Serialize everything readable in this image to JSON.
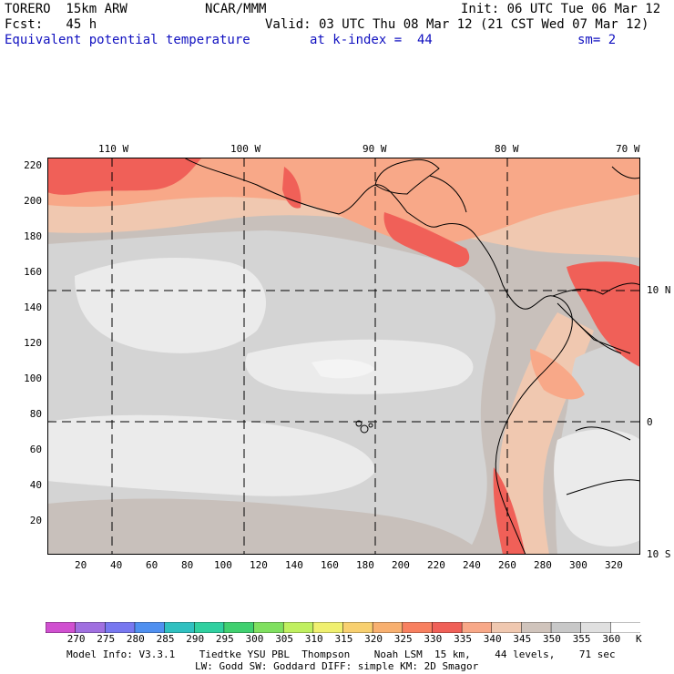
{
  "header": {
    "model": "TORERO  15km ARW",
    "center": "NCAR/MMM",
    "init": "Init: 06 UTC Tue 06 Mar 12",
    "fcst": "Fcst:   45 h",
    "valid": "Valid: 03 UTC Thu 08 Mar 12 (21 CST Wed 07 Mar 12)",
    "field": "Equivalent potential temperature",
    "level": "at k-index =  44",
    "smooth": "sm= 2"
  },
  "axes": {
    "top_labels": [
      "110 W",
      "100 W",
      "90 W",
      "80 W",
      "70 W"
    ],
    "right_labels": [
      "10 N",
      "0",
      "10 S"
    ],
    "x_ticks": [
      "20",
      "40",
      "60",
      "80",
      "100",
      "120",
      "140",
      "160",
      "180",
      "200",
      "220",
      "240",
      "260",
      "280",
      "300",
      "320"
    ],
    "y_ticks": [
      "220",
      "200",
      "180",
      "160",
      "140",
      "120",
      "100",
      "80",
      "60",
      "40",
      "20"
    ]
  },
  "colorbar": {
    "labels": [
      "270",
      "275",
      "280",
      "285",
      "290",
      "295",
      "300",
      "305",
      "310",
      "315",
      "320",
      "325",
      "330",
      "335",
      "340",
      "345",
      "350",
      "355",
      "360"
    ],
    "unit": "K",
    "colors": [
      "#d050d0",
      "#a070e0",
      "#7878f0",
      "#5090f0",
      "#30c0c0",
      "#30d0a0",
      "#40d070",
      "#80e060",
      "#c0f060",
      "#f0f070",
      "#f8d070",
      "#f8b070",
      "#f88060",
      "#f06058",
      "#f8a888",
      "#f0c8b0",
      "#d0c4bc",
      "#c8c8c8",
      "#e0e0e0",
      "#ffffff"
    ]
  },
  "footer": {
    "line1": "Model Info: V3.3.1    Tiedtke YSU PBL  Thompson    Noah LSM  15 km,    44 levels,    71 sec",
    "line2": "LW: Godd SW: Goddard DIFF: simple KM: 2D Smagor"
  }
}
